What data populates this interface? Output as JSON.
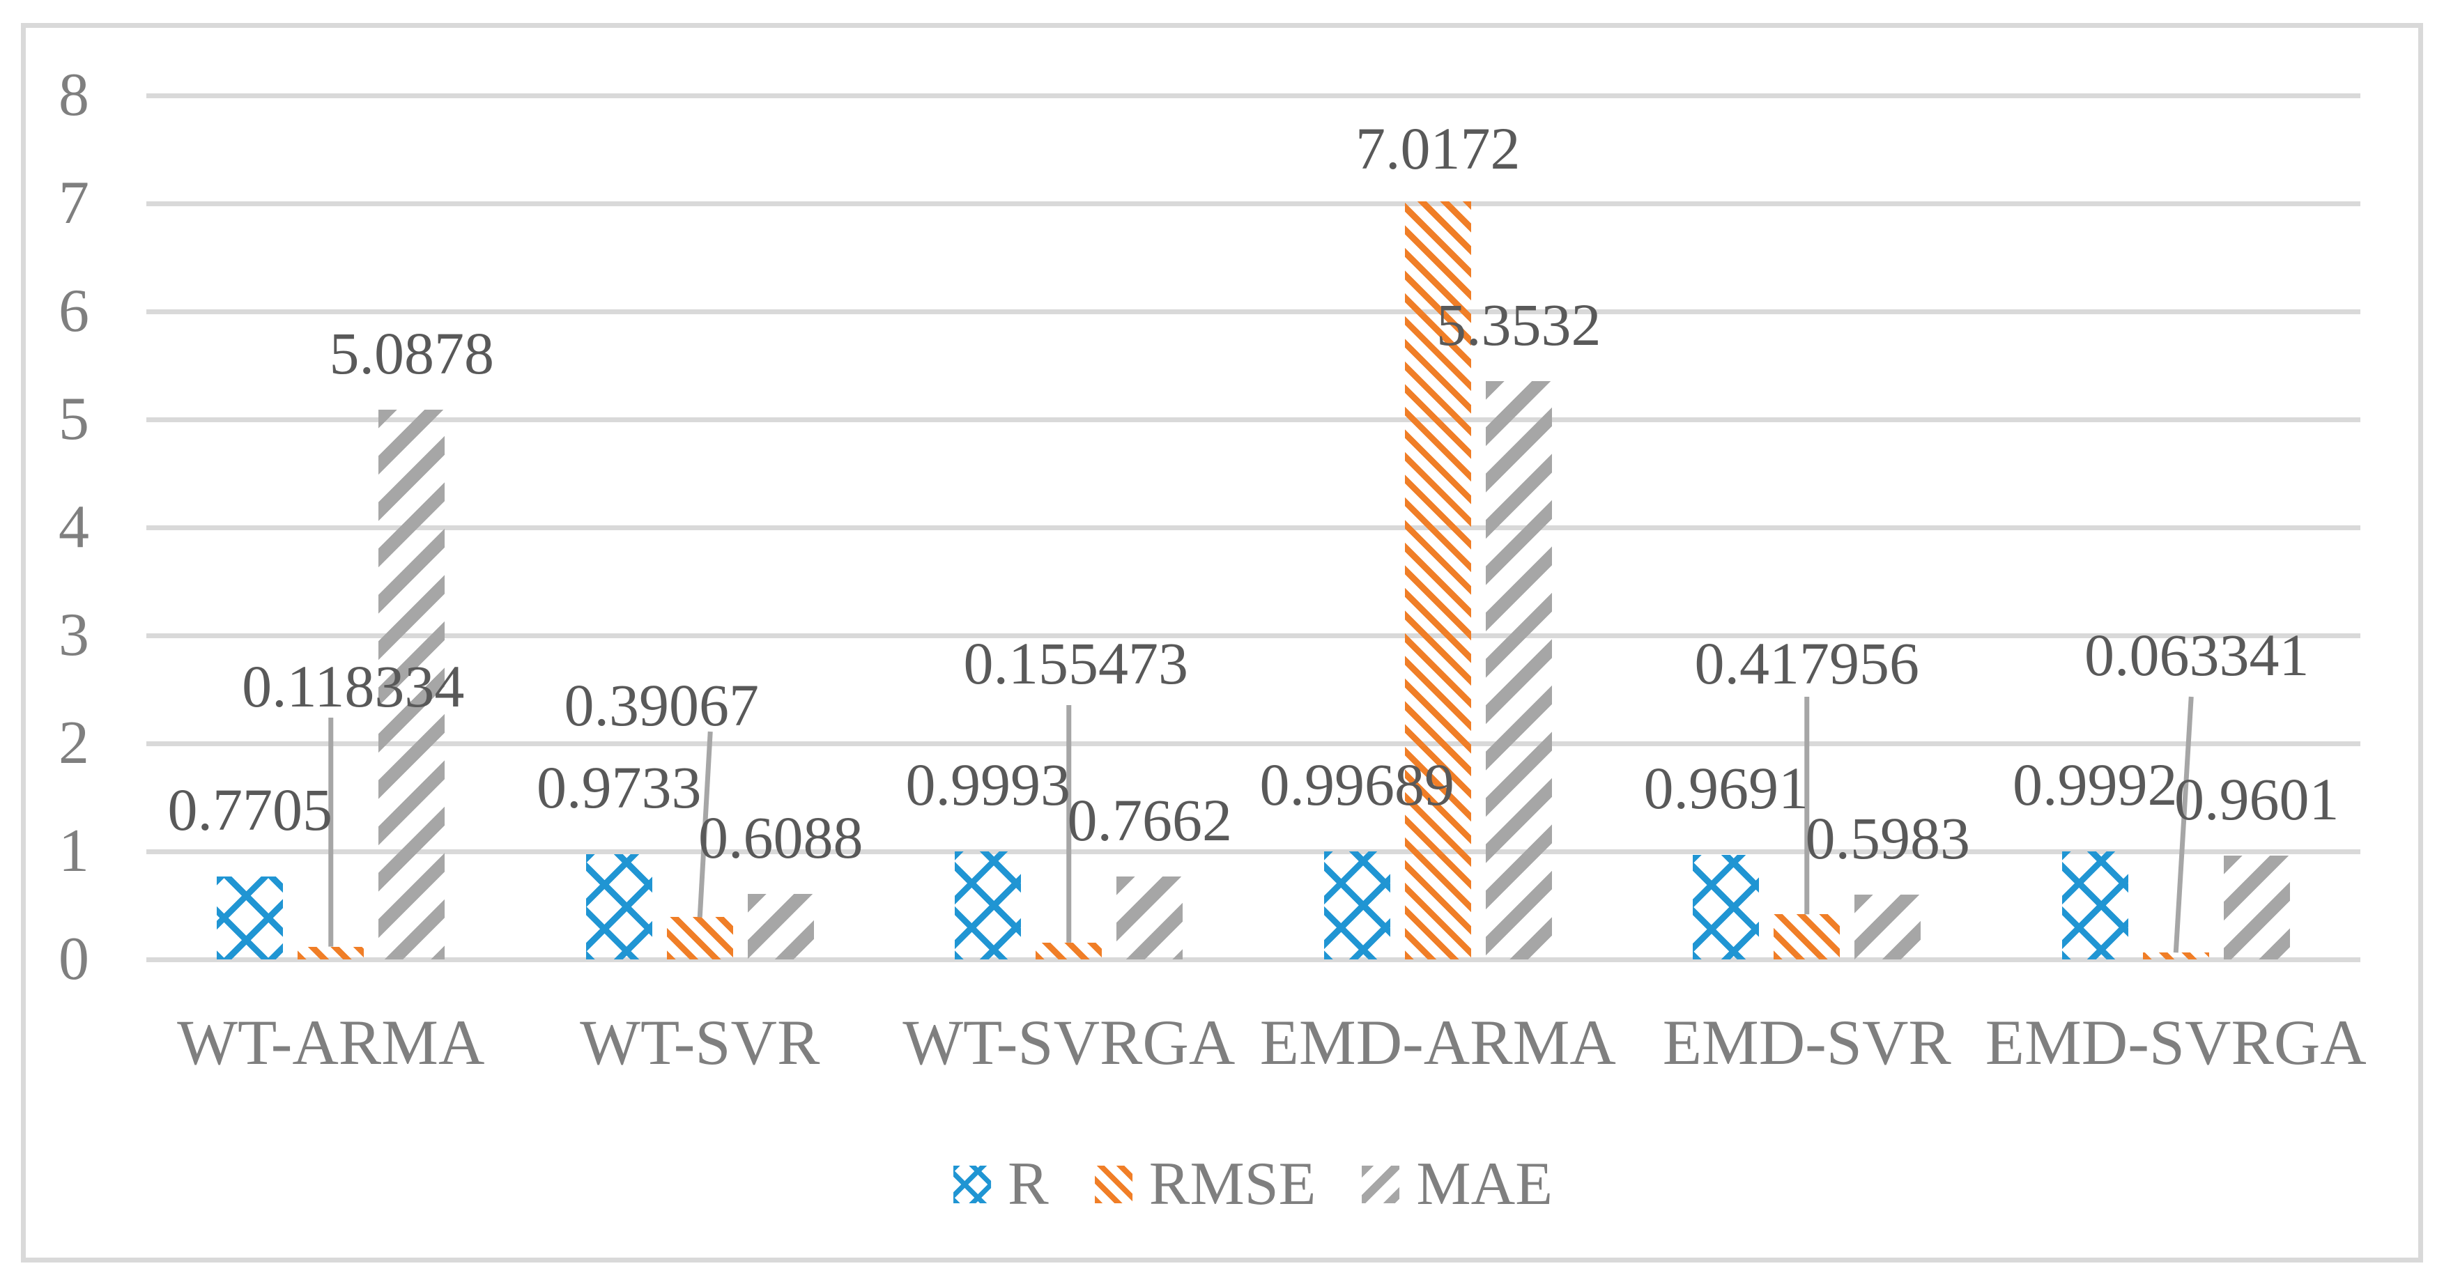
{
  "chart_data": {
    "type": "bar",
    "title": "",
    "xlabel": "",
    "ylabel": "",
    "categories": [
      "WT-ARMA",
      "WT-SVR",
      "WT-SVRGA",
      "EMD-ARMA",
      "EMD-SVR",
      "EMD-SVRGA"
    ],
    "series": [
      {
        "name": "R",
        "color": "#2095D3",
        "pattern": "diagonal-crosshatch",
        "values": [
          0.7705,
          0.9733,
          0.9993,
          0.99689,
          0.9691,
          0.9992
        ],
        "labels": [
          "0.7705",
          "0.9733",
          "0.9993",
          "0.99689",
          "0.9691",
          "0.9992"
        ]
      },
      {
        "name": "RMSE",
        "color": "#F07E27",
        "pattern": "thin-diagonal-stripes-down",
        "values": [
          0.118334,
          0.39067,
          0.155473,
          7.0172,
          0.417956,
          0.063341
        ],
        "labels": [
          "0.118334",
          "0.39067",
          "0.155473",
          "7.0172",
          "0.417956",
          "0.063341"
        ]
      },
      {
        "name": "MAE",
        "color": "#A6A6A6",
        "pattern": "wide-diagonal-stripes-up",
        "values": [
          5.0878,
          0.6088,
          0.7662,
          5.3532,
          0.5983,
          0.9601
        ],
        "labels": [
          "5.0878",
          "0.6088",
          "0.7662",
          "5.3532",
          "0.5983",
          "0.9601"
        ]
      }
    ],
    "ylim": [
      0,
      8
    ],
    "yticks": [
      "0",
      "1",
      "2",
      "3",
      "4",
      "5",
      "6",
      "7",
      "8"
    ],
    "grid": true,
    "legend_position": "bottom",
    "annotations": "small RMSE values use leader-line callout labels"
  },
  "colors": {
    "series_blue": "#2095D3",
    "series_orange": "#F07E27",
    "series_gray": "#A6A6A6",
    "gridline": "#D9D9D9",
    "axis_text": "#7F7F7F",
    "data_label_text": "#595959",
    "leader_line": "#A6A6A6",
    "background": "#FFFFFF"
  }
}
